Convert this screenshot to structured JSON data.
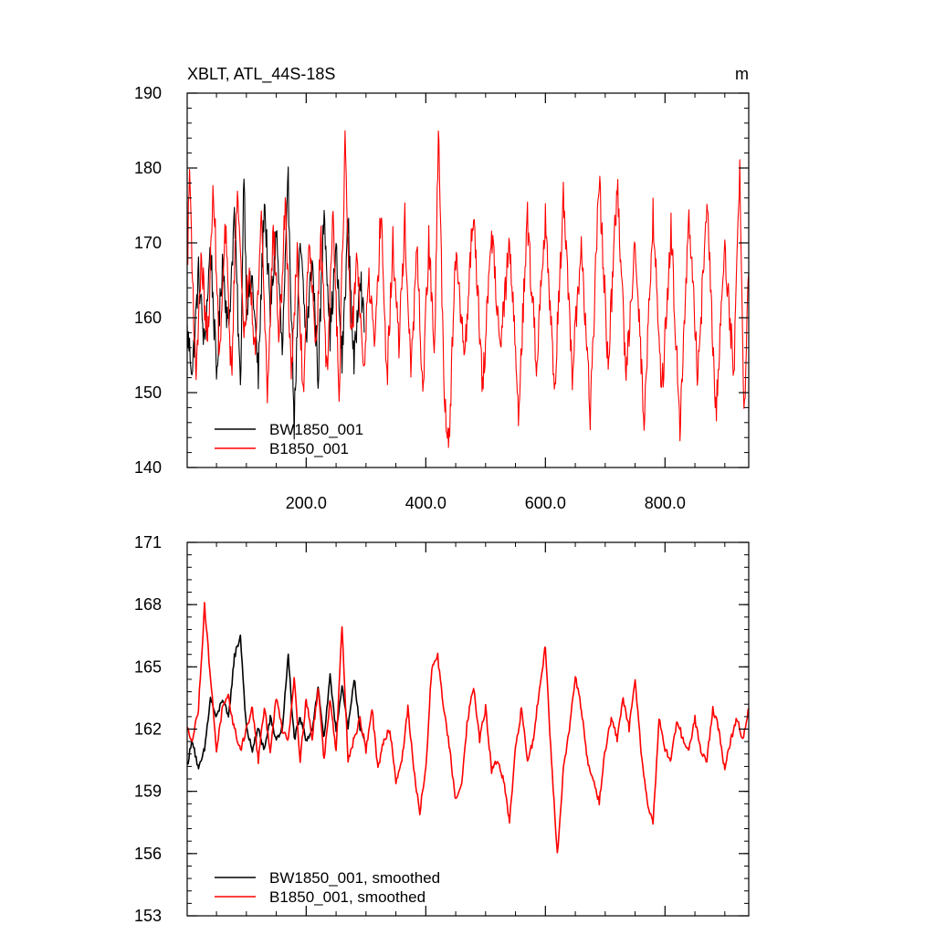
{
  "chart_data": [
    {
      "type": "line",
      "title": "XBLT, ATL_44S-18S",
      "units": "m",
      "xlim": [
        1,
        940
      ],
      "ylim": [
        140,
        190
      ],
      "x_ticks": [
        200,
        400,
        600,
        800
      ],
      "x_tick_labels": [
        "200.0",
        "400.0",
        "600.0",
        "800.0"
      ],
      "y_ticks": [
        140,
        150,
        160,
        170,
        180,
        190
      ],
      "y_tick_labels": [
        "140",
        "150",
        "160",
        "170",
        "180",
        "190"
      ],
      "legend_position": "bottom-left",
      "grid": false,
      "series": [
        {
          "name": "BW1850_001",
          "color": "#000000",
          "points": [
            [
              1,
              158
            ],
            [
              10,
              153
            ],
            [
              20,
              166
            ],
            [
              30,
              156
            ],
            [
              40,
              170
            ],
            [
              50,
              152
            ],
            [
              60,
              168
            ],
            [
              70,
              158
            ],
            [
              80,
              174
            ],
            [
              90,
              150
            ],
            [
              96,
              181
            ],
            [
              100,
              162
            ],
            [
              110,
              165
            ],
            [
              120,
              152
            ],
            [
              130,
              176
            ],
            [
              140,
              160
            ],
            [
              150,
              172
            ],
            [
              160,
              155
            ],
            [
              170,
              178
            ],
            [
              180,
              146
            ],
            [
              190,
              170
            ],
            [
              200,
              157
            ],
            [
              210,
              168
            ],
            [
              220,
              152
            ],
            [
              230,
              175
            ],
            [
              240,
              158
            ],
            [
              250,
              169
            ],
            [
              260,
              154
            ],
            [
              270,
              173
            ],
            [
              280,
              153
            ],
            [
              290,
              167
            ],
            [
              297,
              158
            ]
          ]
        },
        {
          "name": "B1850_001",
          "color": "#ff0000",
          "points": [
            [
              1,
              166
            ],
            [
              5,
              180
            ],
            [
              15,
              152
            ],
            [
              25,
              168
            ],
            [
              35,
              156
            ],
            [
              45,
              178
            ],
            [
              55,
              154
            ],
            [
              65,
              172
            ],
            [
              75,
              152
            ],
            [
              85,
              179
            ],
            [
              95,
              157
            ],
            [
              105,
              168
            ],
            [
              115,
              155
            ],
            [
              125,
              174
            ],
            [
              135,
              150
            ],
            [
              145,
              172
            ],
            [
              155,
              157
            ],
            [
              165,
              175
            ],
            [
              175,
              153
            ],
            [
              185,
              168
            ],
            [
              195,
              150
            ],
            [
              205,
              172
            ],
            [
              215,
              156
            ],
            [
              225,
              170
            ],
            [
              235,
              152
            ],
            [
              245,
              175
            ],
            [
              255,
              150
            ],
            [
              265,
              183
            ],
            [
              275,
              156
            ],
            [
              285,
              169
            ],
            [
              295,
              152
            ],
            [
              305,
              165
            ],
            [
              315,
              155
            ],
            [
              325,
              175
            ],
            [
              335,
              151
            ],
            [
              345,
              170
            ],
            [
              355,
              156
            ],
            [
              365,
              173
            ],
            [
              375,
              152
            ],
            [
              385,
              169
            ],
            [
              395,
              150
            ],
            [
              405,
              170
            ],
            [
              415,
              155
            ],
            [
              421,
              186
            ],
            [
              430,
              152
            ],
            [
              438,
              142
            ],
            [
              450,
              168
            ],
            [
              465,
              155
            ],
            [
              480,
              175
            ],
            [
              495,
              150
            ],
            [
              510,
              172
            ],
            [
              525,
              156
            ],
            [
              540,
              170
            ],
            [
              555,
              148
            ],
            [
              570,
              173
            ],
            [
              585,
              154
            ],
            [
              600,
              174
            ],
            [
              615,
              150
            ],
            [
              630,
              176
            ],
            [
              645,
              152
            ],
            [
              660,
              170
            ],
            [
              675,
              147
            ],
            [
              690,
              179
            ],
            [
              705,
              153
            ],
            [
              720,
              178
            ],
            [
              735,
              152
            ],
            [
              750,
              171
            ],
            [
              765,
              146
            ],
            [
              780,
              174
            ],
            [
              795,
              150
            ],
            [
              810,
              172
            ],
            [
              825,
              146
            ],
            [
              840,
              173
            ],
            [
              855,
              152
            ],
            [
              870,
              176
            ],
            [
              885,
              147
            ],
            [
              900,
              170
            ],
            [
              915,
              152
            ],
            [
              925,
              181
            ],
            [
              932,
              146
            ],
            [
              940,
              166
            ]
          ]
        }
      ]
    },
    {
      "type": "line",
      "title": "",
      "xlim": [
        1,
        940
      ],
      "ylim": [
        153,
        171
      ],
      "x_ticks": [
        200,
        400,
        600,
        800
      ],
      "y_ticks": [
        153,
        156,
        159,
        162,
        165,
        168,
        171
      ],
      "y_tick_labels": [
        "153",
        "156",
        "159",
        "162",
        "165",
        "168",
        "171"
      ],
      "legend_position": "bottom-left",
      "grid": false,
      "series": [
        {
          "name": "BW1850_001, smoothed",
          "color": "#000000",
          "points": [
            [
              1,
              160.3
            ],
            [
              10,
              161.5
            ],
            [
              20,
              160.0
            ],
            [
              30,
              161.0
            ],
            [
              40,
              163.5
            ],
            [
              50,
              162.5
            ],
            [
              60,
              163.5
            ],
            [
              70,
              162.5
            ],
            [
              80,
              165.5
            ],
            [
              90,
              166.5
            ],
            [
              100,
              162.0
            ],
            [
              110,
              161.0
            ],
            [
              120,
              162.0
            ],
            [
              130,
              161.0
            ],
            [
              140,
              162.5
            ],
            [
              150,
              161.5
            ],
            [
              160,
              162.0
            ],
            [
              170,
              165.5
            ],
            [
              180,
              161.5
            ],
            [
              190,
              162.5
            ],
            [
              200,
              161.5
            ],
            [
              210,
              162.0
            ],
            [
              220,
              164.0
            ],
            [
              230,
              161.5
            ],
            [
              240,
              164.5
            ],
            [
              250,
              162.0
            ],
            [
              260,
              164.0
            ],
            [
              270,
              162.0
            ],
            [
              280,
              164.5
            ],
            [
              290,
              162.0
            ],
            [
              297,
              161.5
            ]
          ]
        },
        {
          "name": "B1850_001, smoothed",
          "color": "#ff0000",
          "points": [
            [
              1,
              162.0
            ],
            [
              10,
              161.5
            ],
            [
              20,
              163.0
            ],
            [
              30,
              168.0
            ],
            [
              40,
              164.5
            ],
            [
              50,
              161.0
            ],
            [
              60,
              163.0
            ],
            [
              70,
              163.5
            ],
            [
              80,
              162.0
            ],
            [
              90,
              161.0
            ],
            [
              100,
              162.0
            ],
            [
              110,
              163.0
            ],
            [
              120,
              160.5
            ],
            [
              130,
              163.0
            ],
            [
              140,
              161.0
            ],
            [
              150,
              163.5
            ],
            [
              160,
              162.0
            ],
            [
              170,
              161.5
            ],
            [
              180,
              164.5
            ],
            [
              190,
              160.5
            ],
            [
              200,
              163.5
            ],
            [
              210,
              161.5
            ],
            [
              220,
              164.0
            ],
            [
              230,
              160.5
            ],
            [
              240,
              163.5
            ],
            [
              250,
              161.0
            ],
            [
              260,
              167.0
            ],
            [
              270,
              160.5
            ],
            [
              280,
              161.5
            ],
            [
              290,
              162.5
            ],
            [
              300,
              161.0
            ],
            [
              310,
              163.0
            ],
            [
              320,
              160.0
            ],
            [
              330,
              161.5
            ],
            [
              340,
              162.0
            ],
            [
              350,
              159.5
            ],
            [
              360,
              160.5
            ],
            [
              370,
              163.0
            ],
            [
              380,
              160.0
            ],
            [
              390,
              158.0
            ],
            [
              400,
              160.0
            ],
            [
              410,
              165.0
            ],
            [
              420,
              165.5
            ],
            [
              430,
              163.0
            ],
            [
              440,
              161.0
            ],
            [
              450,
              158.5
            ],
            [
              460,
              159.5
            ],
            [
              470,
              162.5
            ],
            [
              480,
              164.0
            ],
            [
              490,
              161.5
            ],
            [
              500,
              163.0
            ],
            [
              510,
              160.0
            ],
            [
              520,
              160.5
            ],
            [
              530,
              159.5
            ],
            [
              540,
              157.5
            ],
            [
              550,
              161.0
            ],
            [
              560,
              163.0
            ],
            [
              570,
              160.5
            ],
            [
              580,
              161.5
            ],
            [
              590,
              164.0
            ],
            [
              600,
              166.0
            ],
            [
              610,
              160.5
            ],
            [
              620,
              156.0
            ],
            [
              630,
              160.0
            ],
            [
              640,
              162.0
            ],
            [
              650,
              164.5
            ],
            [
              660,
              163.0
            ],
            [
              670,
              160.5
            ],
            [
              680,
              159.5
            ],
            [
              690,
              158.5
            ],
            [
              700,
              161.0
            ],
            [
              710,
              162.5
            ],
            [
              720,
              161.5
            ],
            [
              730,
              163.5
            ],
            [
              740,
              162.0
            ],
            [
              750,
              164.5
            ],
            [
              760,
              161.0
            ],
            [
              770,
              158.5
            ],
            [
              780,
              157.5
            ],
            [
              790,
              162.5
            ],
            [
              800,
              161.0
            ],
            [
              810,
              160.5
            ],
            [
              820,
              162.5
            ],
            [
              830,
              161.5
            ],
            [
              840,
              161.0
            ],
            [
              850,
              162.5
            ],
            [
              860,
              161.0
            ],
            [
              870,
              160.5
            ],
            [
              880,
              163.0
            ],
            [
              890,
              162.0
            ],
            [
              900,
              160.0
            ],
            [
              910,
              161.5
            ],
            [
              920,
              162.5
            ],
            [
              930,
              161.5
            ],
            [
              940,
              163.0
            ]
          ]
        }
      ]
    }
  ]
}
